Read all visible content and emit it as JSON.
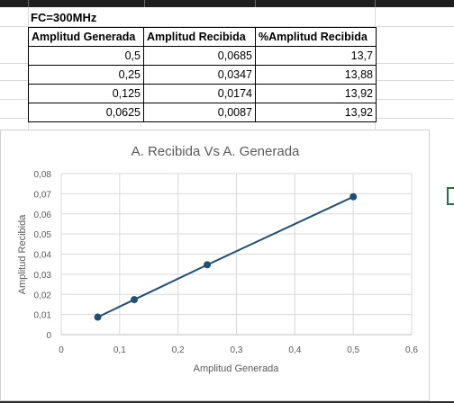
{
  "sheet": {
    "title_cell": "FC=300MHz",
    "table": {
      "headers": [
        "Amplitud Generada",
        "Amplitud Recibida",
        "%Amplitud Recibida"
      ],
      "rows": [
        [
          "0,5",
          "0,0685",
          "13,7"
        ],
        [
          "0,25",
          "0,0347",
          "13,88"
        ],
        [
          "0,125",
          "0,0174",
          "13,92"
        ],
        [
          "0,0625",
          "0,0087",
          "13,92"
        ]
      ]
    }
  },
  "chart_data": {
    "type": "scatter",
    "title": "A. Recibida Vs A. Generada",
    "xlabel": "Amplitud Generada",
    "ylabel": "Amplitud Recibida",
    "xlim": [
      0,
      0.6
    ],
    "ylim": [
      0,
      0.08
    ],
    "xticks": [
      "0",
      "0,1",
      "0,2",
      "0,3",
      "0,4",
      "0,5",
      "0,6"
    ],
    "yticks": [
      "0",
      "0,01",
      "0,02",
      "0,03",
      "0,04",
      "0,05",
      "0,06",
      "0,07",
      "0,08"
    ],
    "grid": true,
    "color": "#1f4e79",
    "series": [
      {
        "x": [
          0.0625,
          0.125,
          0.25,
          0.5
        ],
        "y": [
          0.0087,
          0.0174,
          0.0347,
          0.0685
        ]
      }
    ]
  }
}
